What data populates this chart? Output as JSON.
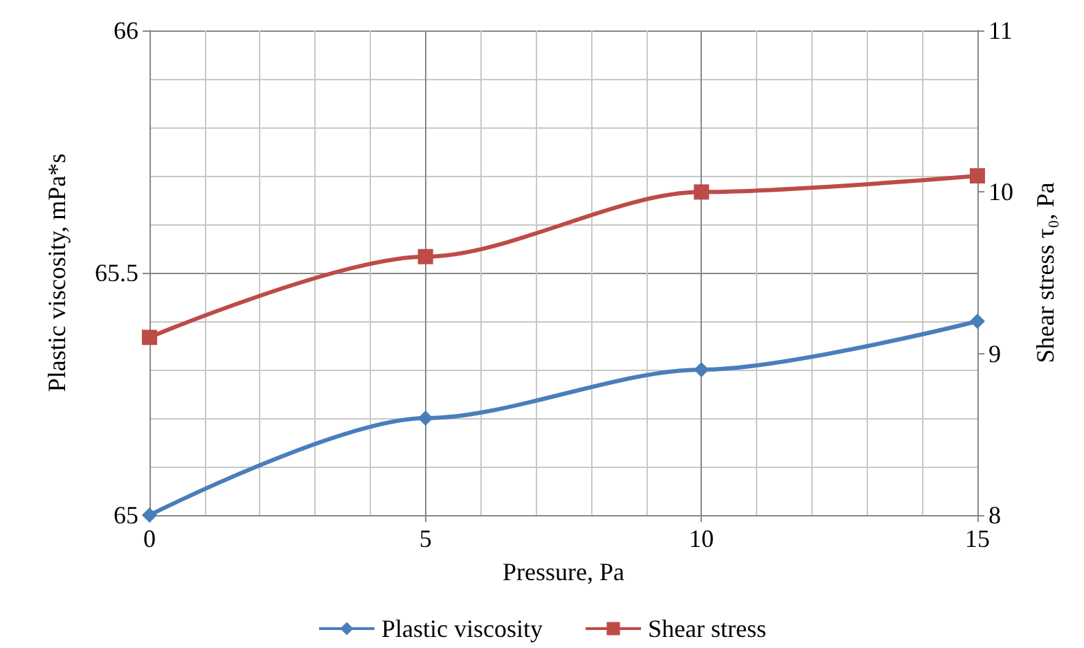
{
  "chart_data": {
    "type": "line",
    "xlabel": "Pressure, Pa",
    "ylabel": "Plastic viscosity, mPa*s",
    "y2label": "Shear stress τ₀, Pa",
    "x": [
      0,
      5,
      10,
      15
    ],
    "series": [
      {
        "name": "Plastic viscosity",
        "color": "#4a7ebb",
        "marker": "diamond",
        "values": [
          65,
          65.2,
          65.3,
          65.4
        ]
      },
      {
        "name": "Shear stress",
        "color": "#be4b48",
        "marker": "square",
        "axis": "y2",
        "values": [
          9.1,
          9.6,
          10,
          10.1
        ]
      }
    ],
    "xlim": [
      0,
      15
    ],
    "xticks": [
      0,
      5,
      10,
      15
    ],
    "ylim": [
      65,
      66
    ],
    "yticks": [
      65,
      65.5,
      66
    ],
    "y2lim": [
      8,
      11
    ],
    "y2ticks": [
      8,
      9,
      10,
      11
    ],
    "grid": true,
    "legend": "bottom",
    "line_style": "solid"
  }
}
